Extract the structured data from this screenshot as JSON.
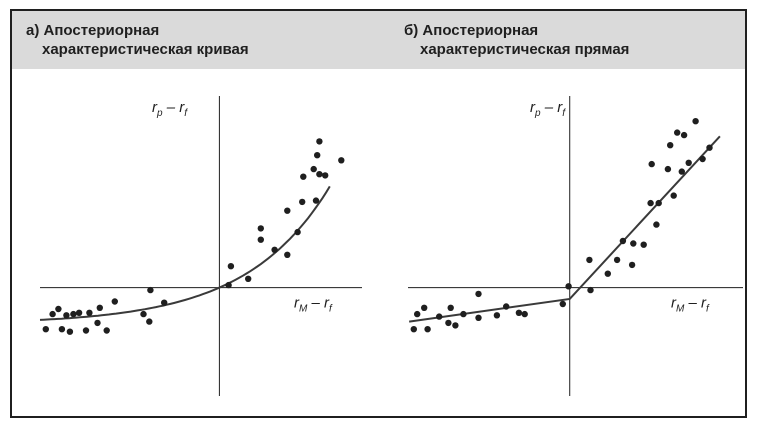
{
  "chart_data": [
    {
      "type": "scatter",
      "title_line1": "а) Апостериорная",
      "title_line2": "характеристическая кривая",
      "ylabel": {
        "main": "r",
        "sub": "p",
        "rest": " – r",
        "sub2": "f"
      },
      "xlabel": {
        "main": "r",
        "sub": "M",
        "rest": " – r",
        "sub2": "f"
      },
      "xlim": [
        -7.8,
        6.2
      ],
      "ylim": [
        -4.3,
        7.6
      ],
      "grid": false,
      "legend": "none",
      "points": [
        [
          -7.55,
          -1.65
        ],
        [
          -7.25,
          -1.05
        ],
        [
          -7.0,
          -0.85
        ],
        [
          -6.85,
          -1.65
        ],
        [
          -6.65,
          -1.1
        ],
        [
          -6.5,
          -1.75
        ],
        [
          -6.35,
          -1.05
        ],
        [
          -6.1,
          -1.0
        ],
        [
          -5.8,
          -1.7
        ],
        [
          -5.65,
          -1.0
        ],
        [
          -5.3,
          -1.4
        ],
        [
          -5.2,
          -0.8
        ],
        [
          -4.9,
          -1.7
        ],
        [
          -4.55,
          -0.55
        ],
        [
          -3.3,
          -1.05
        ],
        [
          -3.05,
          -1.35
        ],
        [
          -3.0,
          -0.1
        ],
        [
          -2.4,
          -0.6
        ],
        [
          0.4,
          0.1
        ],
        [
          0.5,
          0.85
        ],
        [
          1.25,
          0.35
        ],
        [
          1.8,
          1.9
        ],
        [
          1.8,
          2.35
        ],
        [
          2.4,
          1.5
        ],
        [
          2.95,
          1.3
        ],
        [
          2.95,
          3.05
        ],
        [
          3.4,
          2.2
        ],
        [
          3.6,
          3.4
        ],
        [
          3.65,
          4.4
        ],
        [
          4.1,
          4.7
        ],
        [
          4.2,
          3.45
        ],
        [
          4.25,
          5.25
        ],
        [
          4.35,
          5.8
        ],
        [
          4.35,
          4.5
        ],
        [
          4.6,
          4.45
        ],
        [
          5.3,
          5.05
        ]
      ],
      "fit": {
        "kind": "curve",
        "a": -1.45,
        "b": 1.45,
        "k": 0.2764
      },
      "fit_range": [
        -7.8,
        4.8
      ]
    },
    {
      "type": "scatter",
      "title_line1": "б) Апостериорная",
      "title_line2": "характеристическая прямая",
      "ylabel": {
        "main": "r",
        "sub": "p",
        "rest": " – r",
        "sub2": "f"
      },
      "xlabel": {
        "main": "r",
        "sub": "M",
        "rest": " – r",
        "sub2": "f"
      },
      "xlim": [
        -7.0,
        7.5
      ],
      "ylim": [
        -4.3,
        7.6
      ],
      "grid": false,
      "legend": "none",
      "points": [
        [
          -6.75,
          -1.65
        ],
        [
          -6.6,
          -1.05
        ],
        [
          -6.3,
          -0.8
        ],
        [
          -6.15,
          -1.65
        ],
        [
          -5.65,
          -1.15
        ],
        [
          -5.25,
          -1.4
        ],
        [
          -5.15,
          -0.8
        ],
        [
          -4.95,
          -1.5
        ],
        [
          -4.6,
          -1.05
        ],
        [
          -3.95,
          -1.2
        ],
        [
          -3.95,
          -0.25
        ],
        [
          -3.15,
          -1.1
        ],
        [
          -2.75,
          -0.75
        ],
        [
          -2.2,
          -1.0
        ],
        [
          -1.95,
          -1.05
        ],
        [
          -0.3,
          -0.65
        ],
        [
          -0.05,
          0.05
        ],
        [
          0.9,
          -0.1
        ],
        [
          0.85,
          1.1
        ],
        [
          1.65,
          0.55
        ],
        [
          2.05,
          1.1
        ],
        [
          2.3,
          1.85
        ],
        [
          2.7,
          0.9
        ],
        [
          2.75,
          1.75
        ],
        [
          3.2,
          1.7
        ],
        [
          3.5,
          3.35
        ],
        [
          3.55,
          4.9
        ],
        [
          3.75,
          2.5
        ],
        [
          3.85,
          3.35
        ],
        [
          4.25,
          4.7
        ],
        [
          4.35,
          5.65
        ],
        [
          4.5,
          3.65
        ],
        [
          4.65,
          6.15
        ],
        [
          4.85,
          4.6
        ],
        [
          4.95,
          6.05
        ],
        [
          5.15,
          4.95
        ],
        [
          5.45,
          6.6
        ],
        [
          5.75,
          5.1
        ],
        [
          6.05,
          5.55
        ]
      ],
      "fit": {
        "kind": "kinked",
        "x0": -6.95,
        "x1": 0.0,
        "x2": 6.5,
        "y0": -1.35,
        "y1": -0.45,
        "y2": 6.0
      }
    }
  ],
  "styles": {
    "ink": "#1f1f1f",
    "header_bg": "#dadada",
    "frame": "#1f1f1f"
  }
}
